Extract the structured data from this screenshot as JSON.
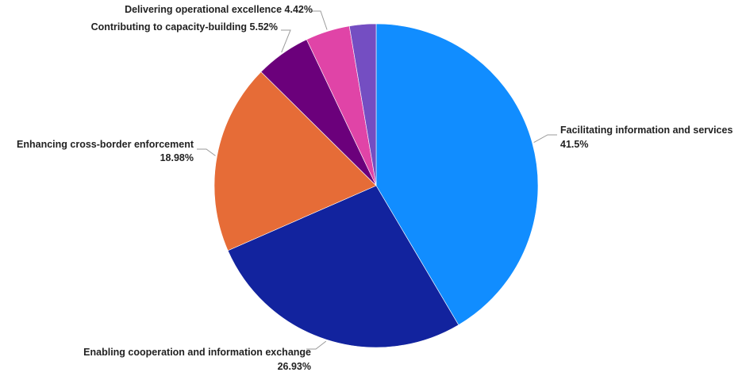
{
  "chart_data": {
    "type": "pie",
    "slices": [
      {
        "label": "Facilitating information and services",
        "value_label": "41.5%",
        "value": 41.5,
        "color": "#118DFF"
      },
      {
        "label": "Enabling cooperation and information exchange",
        "value_label": "26.93%",
        "value": 26.93,
        "color": "#12239E"
      },
      {
        "label": "Enhancing cross-border enforcement",
        "value_label": "18.98%",
        "value": 18.98,
        "color": "#E66C37"
      },
      {
        "label": "Contributing to capacity-building",
        "value_label": "5.52%",
        "value": 5.52,
        "color": "#6B007B"
      },
      {
        "label": "Delivering operational excellence",
        "value_label": "4.42%",
        "value": 4.42,
        "color": "#E044A7"
      },
      {
        "label": "",
        "value_label": "",
        "value": 2.65,
        "color": "#744EC2"
      }
    ],
    "start_angle_deg": 0,
    "direction": "clockwise",
    "legend": "none"
  }
}
